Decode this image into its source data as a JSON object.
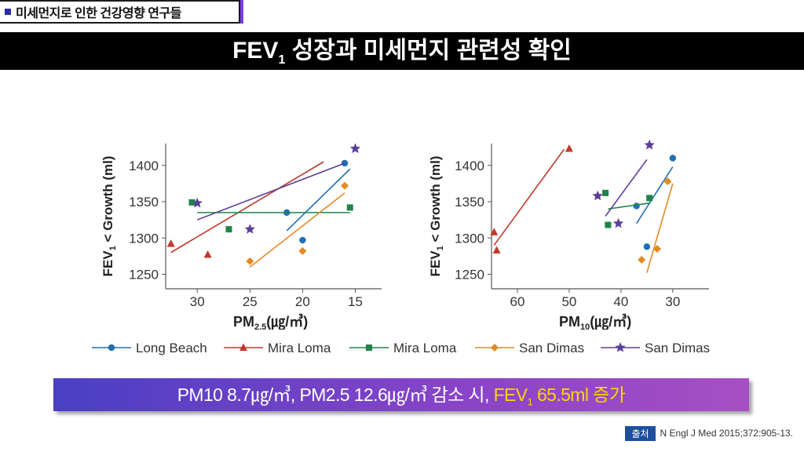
{
  "header": {
    "section_tag": "미세먼지로 인한 건강영향 연구들"
  },
  "title": {
    "pre": "FEV",
    "sub": "1",
    "post": " 성장과 미세먼지 관련성 확인"
  },
  "conclusion": {
    "text_main": "PM10 8.7㎍/㎥, PM2.5 12.6㎍/㎥ 감소 시, ",
    "hl_pre": "FEV",
    "hl_sub": "1",
    "hl_post": " 65.5ml 증가"
  },
  "source": {
    "badge": "출처",
    "citation": "N Engl J Med 2015;372:905-13."
  },
  "legend": [
    "Long Beach",
    "Mira Loma",
    "Mira Loma",
    "San Dimas",
    "San Dimas"
  ],
  "colors": {
    "long_beach": "#1f6fb4",
    "mira_loma_red": "#c0392b",
    "mira_loma_green": "#1e8449",
    "san_dimas_orange": "#e38a24",
    "san_dimas_purple": "#5b3f99"
  },
  "chart_data": [
    {
      "type": "scatter",
      "xlabel": "PM2.5(㎍/㎥)",
      "ylabel": "FEV1 < Growth (ml)",
      "x_reversed": true,
      "xlim": [
        33,
        12.5
      ],
      "ylim": [
        1230,
        1430
      ],
      "xticks": [
        30,
        25,
        20,
        15
      ],
      "yticks": [
        1250,
        1300,
        1350,
        1400
      ],
      "series": [
        {
          "name": "Long Beach",
          "marker": "circle",
          "color": "#1f6fb4",
          "points": [
            [
              21.5,
              1335
            ],
            [
              20,
              1297
            ],
            [
              16,
              1403
            ]
          ],
          "fit": [
            [
              21.5,
              1310
            ],
            [
              15.5,
              1395
            ]
          ]
        },
        {
          "name": "Mira Loma",
          "marker": "triangle",
          "color": "#c0392b",
          "points": [
            [
              32.5,
              1292
            ],
            [
              29,
              1277
            ]
          ],
          "fit": [
            [
              32.5,
              1280
            ],
            [
              18,
              1405
            ]
          ]
        },
        {
          "name": "Mira Loma",
          "marker": "square",
          "color": "#1e8449",
          "points": [
            [
              30.5,
              1349
            ],
            [
              27,
              1312
            ],
            [
              15.5,
              1342
            ]
          ],
          "fit": [
            [
              30,
              1335
            ],
            [
              15.5,
              1335
            ]
          ]
        },
        {
          "name": "San Dimas",
          "marker": "diamond",
          "color": "#e38a24",
          "points": [
            [
              25,
              1268
            ],
            [
              20,
              1282
            ],
            [
              16,
              1372
            ]
          ],
          "fit": [
            [
              25,
              1260
            ],
            [
              16,
              1362
            ]
          ]
        },
        {
          "name": "San Dimas",
          "marker": "star",
          "color": "#5b3f99",
          "points": [
            [
              30,
              1348
            ],
            [
              25,
              1312
            ],
            [
              15,
              1423
            ]
          ],
          "fit": [
            [
              30,
              1325
            ],
            [
              16,
              1403
            ]
          ]
        }
      ]
    },
    {
      "type": "scatter",
      "xlabel": "PM10(㎍/㎥)",
      "ylabel": "FEV1 < Growth (ml)",
      "x_reversed": true,
      "xlim": [
        65,
        23
      ],
      "ylim": [
        1230,
        1430
      ],
      "xticks": [
        60,
        50,
        40,
        30
      ],
      "yticks": [
        1250,
        1300,
        1350,
        1400
      ],
      "series": [
        {
          "name": "Long Beach",
          "marker": "circle",
          "color": "#1f6fb4",
          "points": [
            [
              37,
              1344
            ],
            [
              35,
              1288
            ],
            [
              30,
              1410
            ]
          ],
          "fit": [
            [
              37,
              1320
            ],
            [
              30,
              1398
            ]
          ]
        },
        {
          "name": "Mira Loma",
          "marker": "triangle",
          "color": "#c0392b",
          "points": [
            [
              64.5,
              1308
            ],
            [
              64,
              1283
            ],
            [
              50,
              1423
            ]
          ],
          "fit": [
            [
              64.5,
              1290
            ],
            [
              51,
              1422
            ]
          ]
        },
        {
          "name": "Mira Loma",
          "marker": "square",
          "color": "#1e8449",
          "points": [
            [
              43,
              1362
            ],
            [
              42.5,
              1318
            ],
            [
              34.5,
              1355
            ]
          ],
          "fit": [
            [
              42.5,
              1340
            ],
            [
              34.5,
              1348
            ]
          ]
        },
        {
          "name": "San Dimas",
          "marker": "diamond",
          "color": "#e38a24",
          "points": [
            [
              36,
              1270
            ],
            [
              33,
              1285
            ],
            [
              31,
              1378
            ]
          ],
          "fit": [
            [
              35,
              1252
            ],
            [
              30,
              1375
            ]
          ]
        },
        {
          "name": "San Dimas",
          "marker": "star",
          "color": "#5b3f99",
          "points": [
            [
              44.5,
              1358
            ],
            [
              40.5,
              1320
            ],
            [
              34.5,
              1428
            ]
          ],
          "fit": [
            [
              43,
              1330
            ],
            [
              35,
              1408
            ]
          ]
        }
      ]
    }
  ]
}
